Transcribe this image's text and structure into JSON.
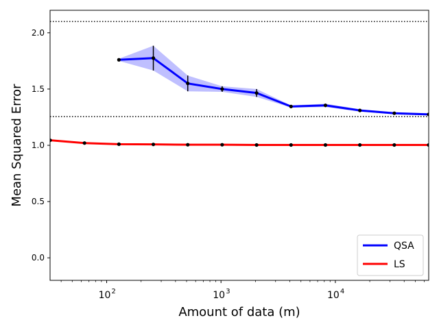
{
  "chart_data": {
    "type": "line",
    "title": "",
    "xlabel": "Amount of data (m)",
    "ylabel": "Mean Squared Error",
    "xscale": "log",
    "xlim": [
      32,
      65536
    ],
    "ylim": [
      -0.2,
      2.2
    ],
    "y_ticks": [
      "0.0",
      "0.5",
      "1.0",
      "1.5",
      "2.0"
    ],
    "x_ticks": [
      {
        "base": "10",
        "exp": "2"
      },
      {
        "base": "10",
        "exp": "3"
      },
      {
        "base": "10",
        "exp": "4"
      }
    ],
    "grid": false,
    "legend_position": "lower-right",
    "reference_lines": [
      {
        "y": 2.1,
        "style": "dotted",
        "color": "#000000"
      },
      {
        "y": 1.255,
        "style": "dotted",
        "color": "#000000"
      }
    ],
    "series": [
      {
        "name": "QSA",
        "color": "#0000ff",
        "x": [
          128,
          256,
          512,
          1024,
          2048,
          4096,
          8192,
          16384,
          32768,
          65536
        ],
        "y": [
          1.76,
          1.775,
          1.55,
          1.5,
          1.465,
          1.345,
          1.355,
          1.31,
          1.285,
          1.275
        ],
        "error": [
          0.01,
          0.11,
          0.07,
          0.025,
          0.035,
          0.01,
          0.015,
          0.01,
          0.01,
          0.01
        ]
      },
      {
        "name": "LS",
        "color": "#ff0000",
        "x": [
          32,
          64,
          128,
          256,
          512,
          1024,
          2048,
          4096,
          8192,
          16384,
          32768,
          65536
        ],
        "y": [
          1.045,
          1.02,
          1.01,
          1.008,
          1.005,
          1.005,
          1.003,
          1.003,
          1.003,
          1.003,
          1.003,
          1.003
        ],
        "error": [
          0.005,
          0.005,
          0.005,
          0.005,
          0.005,
          0.005,
          0.005,
          0.005,
          0.005,
          0.005,
          0.005,
          0.005
        ]
      }
    ]
  }
}
